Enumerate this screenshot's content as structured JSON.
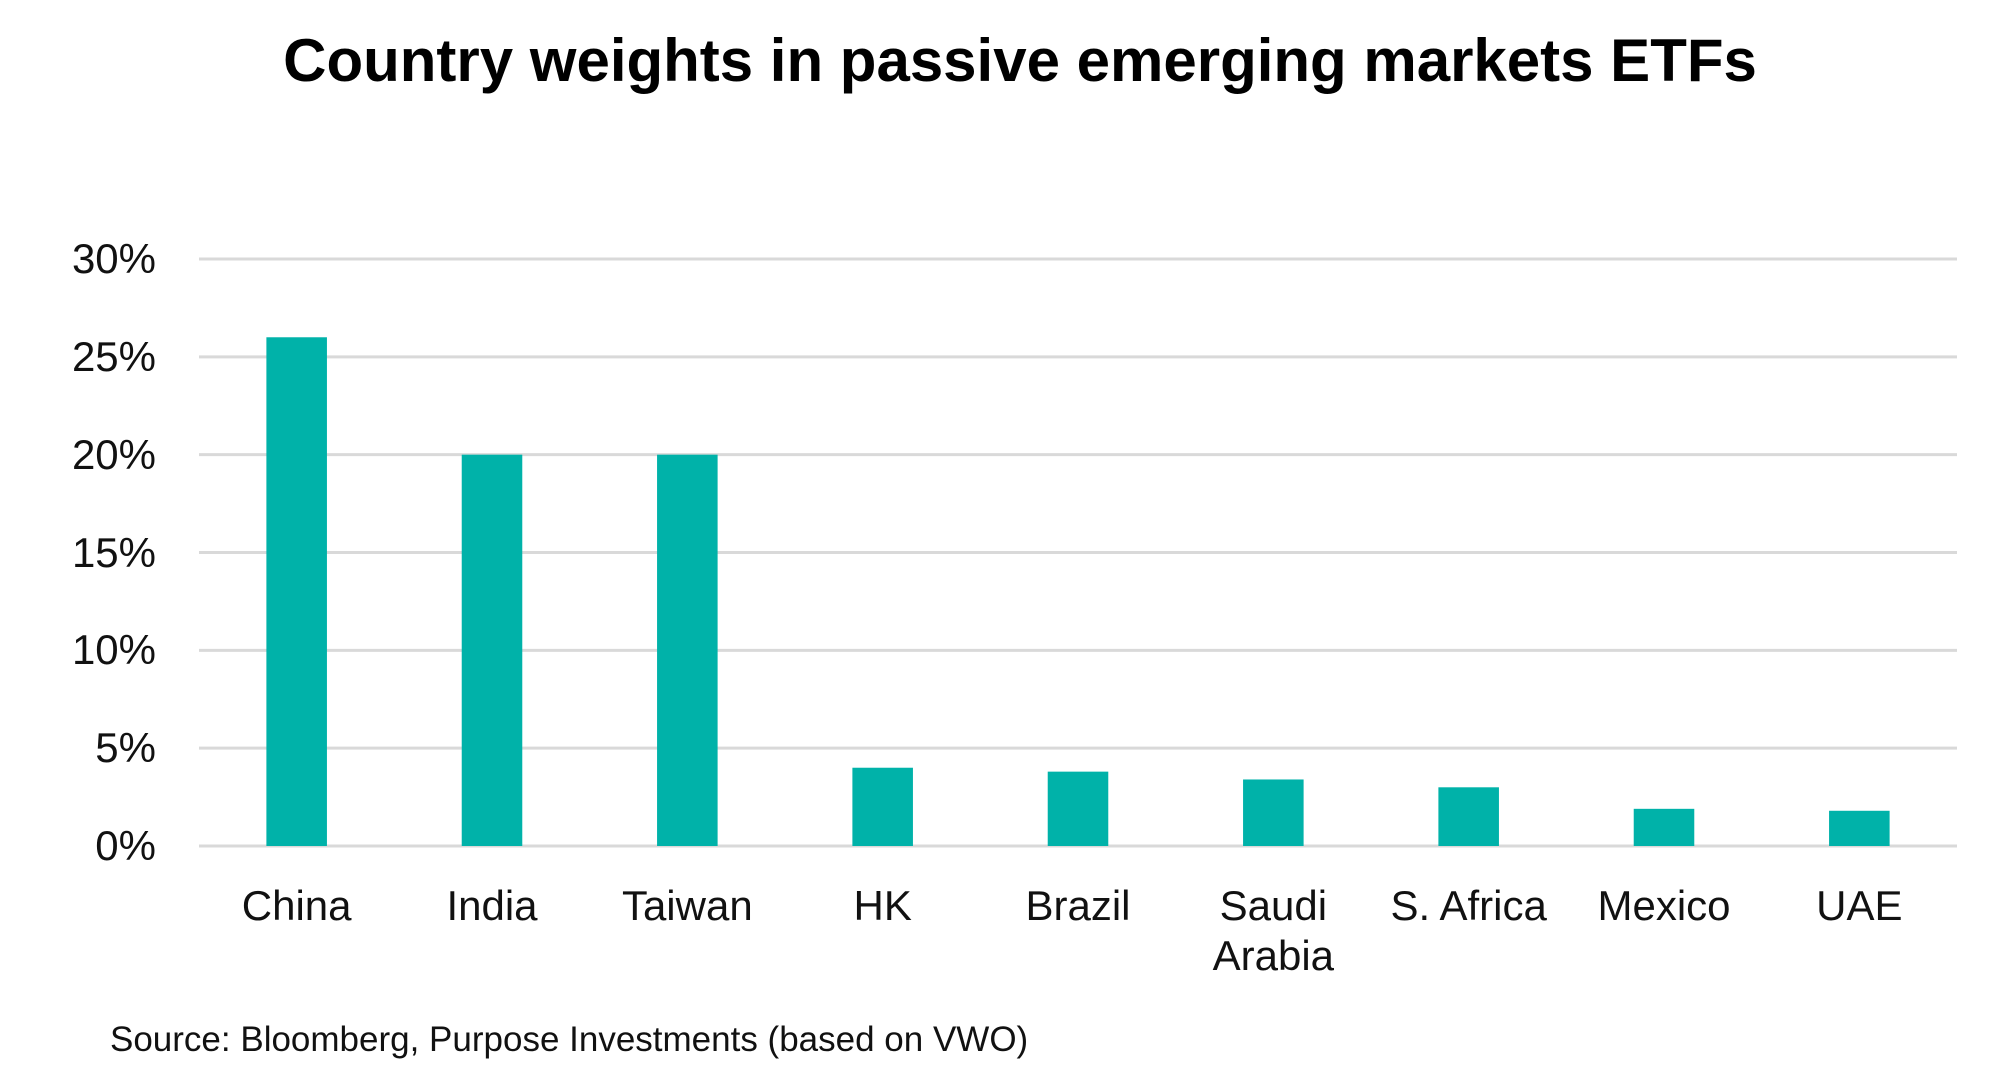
{
  "chart_data": {
    "type": "bar",
    "title": "Country weights in passive emerging markets ETFs",
    "categories": [
      "China",
      "India",
      "Taiwan",
      "HK",
      "Brazil",
      "Saudi Arabia",
      "S. Africa",
      "Mexico",
      "UAE"
    ],
    "values": [
      26,
      20,
      20,
      4,
      3.8,
      3.4,
      3,
      1.9,
      1.8
    ],
    "color": "#00b2a9",
    "ylim": [
      0,
      30
    ],
    "yticks": [
      {
        "value": 0,
        "label": "0%"
      },
      {
        "value": 5,
        "label": "5%"
      },
      {
        "value": 10,
        "label": "10%"
      },
      {
        "value": 15,
        "label": "15%"
      },
      {
        "value": 20,
        "label": "20%"
      },
      {
        "value": 25,
        "label": "25%"
      },
      {
        "value": 30,
        "label": "30%"
      }
    ],
    "grid": true,
    "source": "Source: Bloomberg, Purpose Investments (based on VWO)"
  }
}
